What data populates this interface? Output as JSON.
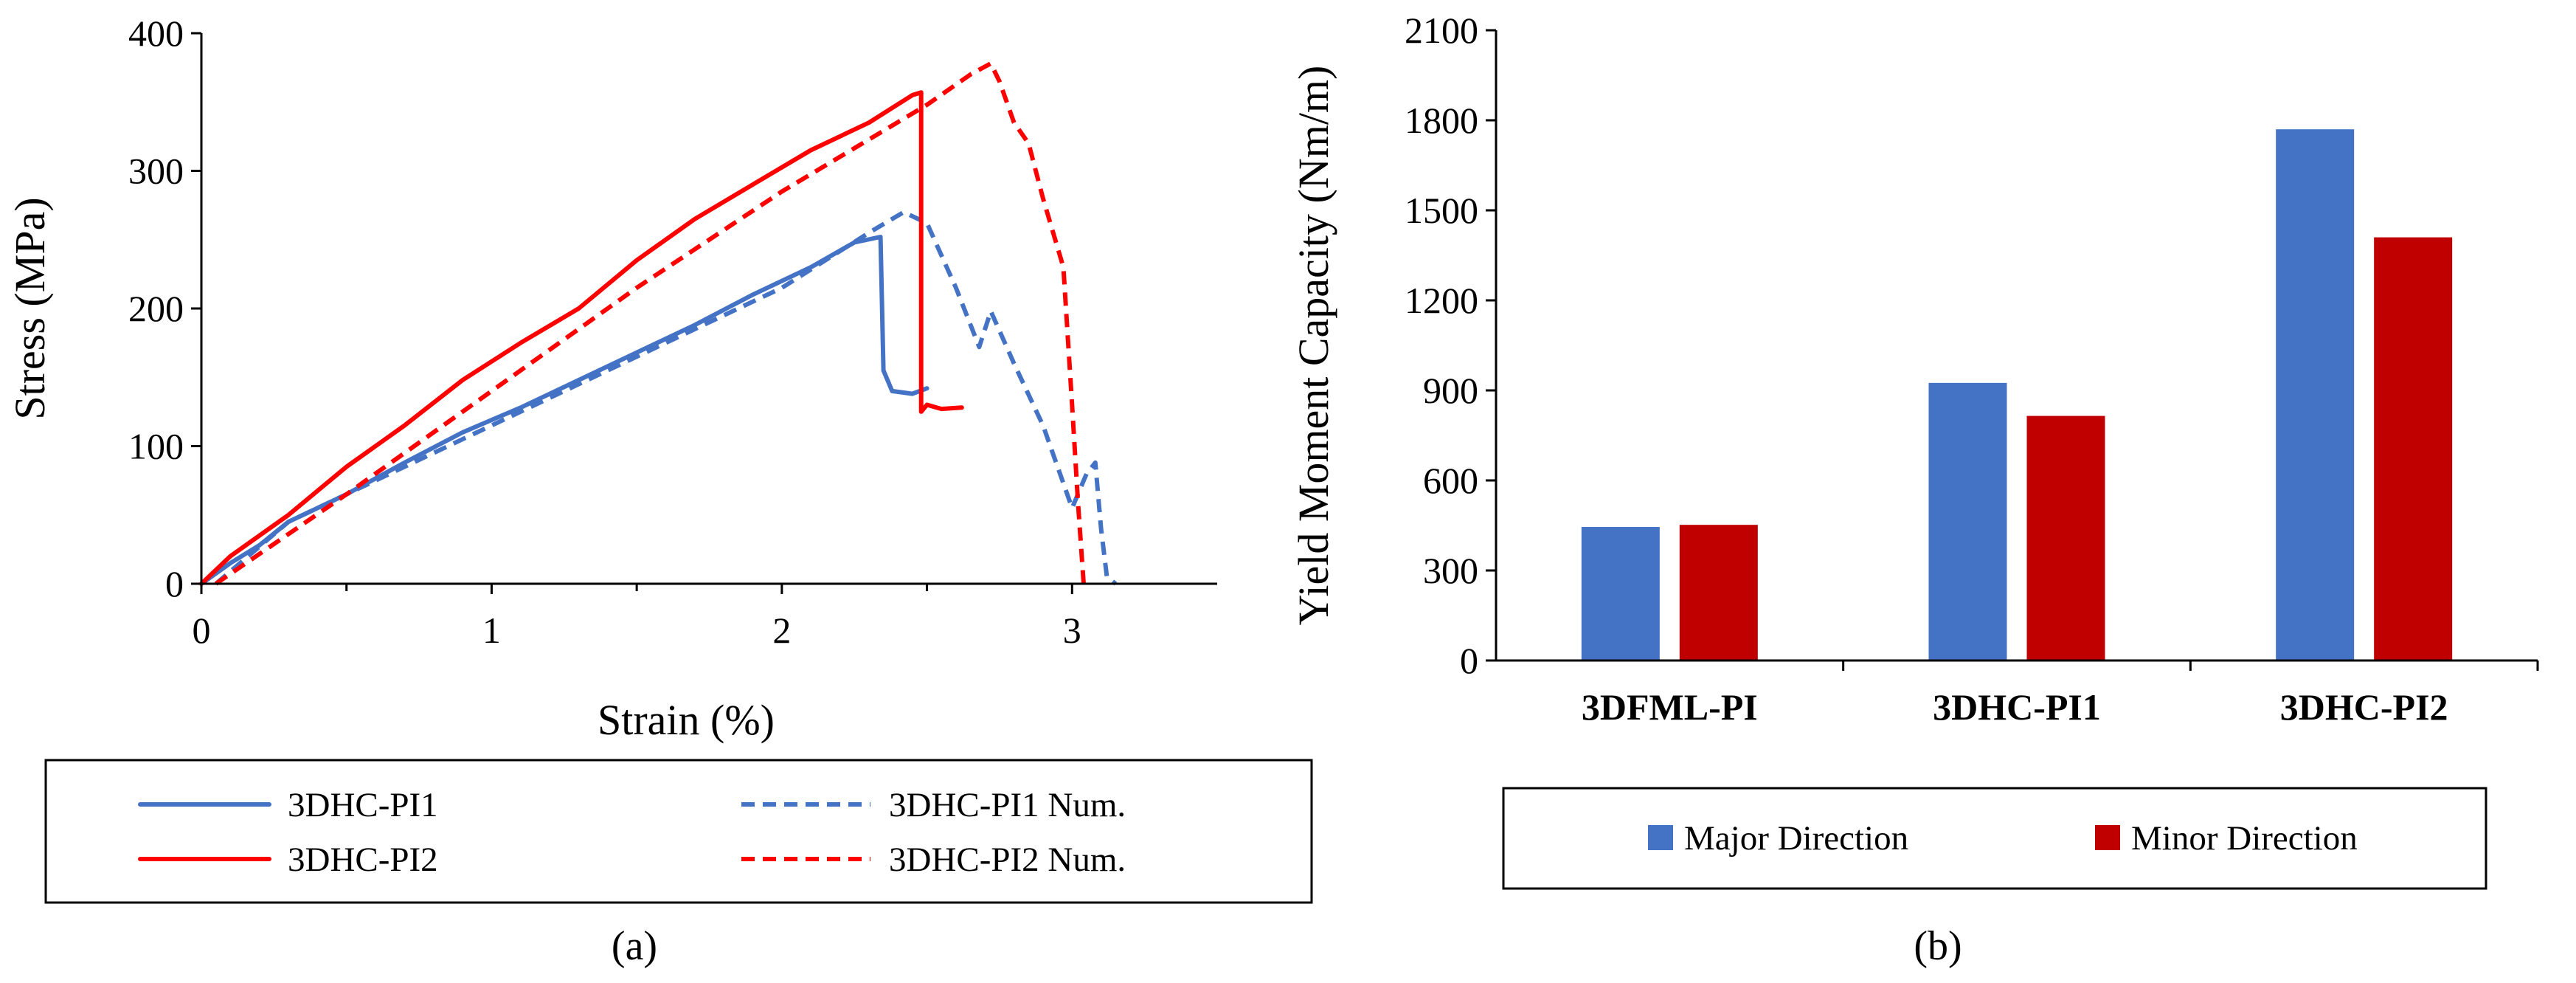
{
  "chart_data": [
    {
      "type": "line",
      "panel_label": "(a)",
      "title": "",
      "xlabel": "Strain (%)",
      "ylabel": "Stress (MPa)",
      "xlim": [
        0,
        3.5
      ],
      "ylim": [
        0,
        400
      ],
      "xticks": [
        0,
        1,
        2,
        3
      ],
      "yticks": [
        0,
        100,
        200,
        300,
        400
      ],
      "grid": false,
      "legend_position": "bottom",
      "series": [
        {
          "name": "3DHC-PI1",
          "style": "solid",
          "color": "#4472C4",
          "x": [
            0,
            0.1,
            0.2,
            0.3,
            0.5,
            0.7,
            0.9,
            1.1,
            1.3,
            1.5,
            1.7,
            1.9,
            2.1,
            2.25,
            2.34,
            2.35,
            2.38,
            2.45,
            2.5
          ],
          "y": [
            0,
            15,
            28,
            45,
            65,
            88,
            110,
            128,
            148,
            168,
            188,
            210,
            230,
            248,
            252,
            155,
            140,
            138,
            142
          ]
        },
        {
          "name": "3DHC-PI1 Num.",
          "style": "dashed",
          "color": "#4472C4",
          "x": [
            0.05,
            0.3,
            0.6,
            1.0,
            1.5,
            2.0,
            2.3,
            2.42,
            2.5,
            2.6,
            2.68,
            2.72,
            2.8,
            2.9,
            3.0,
            3.05,
            3.08,
            3.1,
            3.12,
            3.15
          ],
          "y": [
            0,
            45,
            75,
            115,
            165,
            215,
            255,
            270,
            262,
            215,
            172,
            198,
            160,
            115,
            55,
            80,
            88,
            40,
            5,
            0
          ]
        },
        {
          "name": "3DHC-PI2",
          "style": "solid",
          "color": "#FF0000",
          "x": [
            0,
            0.1,
            0.3,
            0.5,
            0.7,
            0.9,
            1.1,
            1.3,
            1.5,
            1.7,
            1.9,
            2.1,
            2.3,
            2.45,
            2.48,
            2.48,
            2.5,
            2.55,
            2.62
          ],
          "y": [
            0,
            20,
            50,
            85,
            115,
            148,
            175,
            200,
            235,
            265,
            290,
            315,
            335,
            355,
            357,
            125,
            130,
            127,
            128
          ]
        },
        {
          "name": "3DHC-PI2 Num.",
          "style": "dashed",
          "color": "#FF0000",
          "x": [
            0.05,
            0.5,
            1.0,
            1.5,
            2.0,
            2.5,
            2.65,
            2.72,
            2.75,
            2.8,
            2.85,
            2.9,
            2.97,
            3.0,
            3.02,
            3.04
          ],
          "y": [
            0,
            65,
            140,
            215,
            285,
            348,
            370,
            378,
            365,
            335,
            320,
            280,
            230,
            130,
            60,
            0
          ]
        }
      ]
    },
    {
      "type": "bar",
      "panel_label": "(b)",
      "title": "",
      "xlabel": "",
      "ylabel": "Yield Moment Capacity (Nm/m)",
      "ylim": [
        0,
        2100
      ],
      "yticks": [
        0,
        300,
        600,
        900,
        1200,
        1500,
        1800,
        2100
      ],
      "grid": false,
      "legend_position": "bottom",
      "categories": [
        "3DFML-PI",
        "3DHC-PI1",
        "3DHC-PI2"
      ],
      "series": [
        {
          "name": "Major Direction",
          "color": "#4472C4",
          "values": [
            445,
            925,
            1770
          ]
        },
        {
          "name": "Minor Direction",
          "color": "#C00000",
          "values": [
            452,
            815,
            1410
          ]
        }
      ]
    }
  ]
}
